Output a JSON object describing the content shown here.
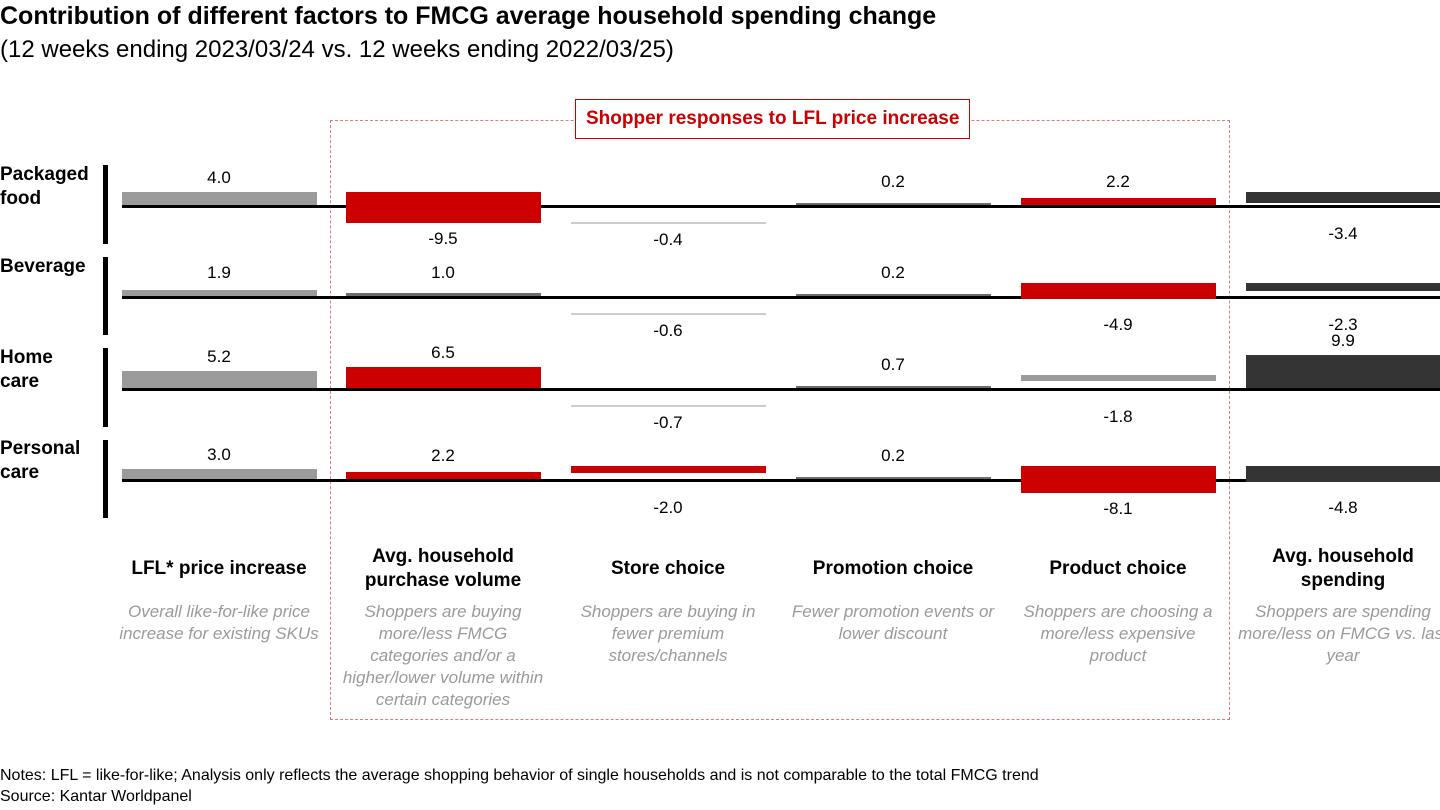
{
  "title": "Contribution of different factors to FMCG average household spending change",
  "subtitle": "(12 weeks ending 2023/03/24 vs. 12 weeks ending 2022/03/25)",
  "callout_label": "Shopper responses to LFL price increase",
  "notes": {
    "line1": "Notes: LFL = like-for-like; Analysis only reflects the average shopping behavior of single households and is not comparable to the total FMCG trend",
    "line2": "Source: Kantar Worldpanel"
  },
  "columns": [
    {
      "head": "LFL* price increase",
      "desc": "Overall like-for-like price increase for existing SKUs"
    },
    {
      "head": "Avg. household purchase volume",
      "desc": "Shoppers are buying more/less FMCG categories and/or a higher/lower volume within certain categories"
    },
    {
      "head": "Store choice",
      "desc": "Shoppers are buying in fewer premium stores/channels"
    },
    {
      "head": "Promotion choice",
      "desc": "Fewer promotion events or lower discount"
    },
    {
      "head": "Product choice",
      "desc": "Shoppers are choosing a more/less expensive product"
    },
    {
      "head": "Avg. household spending",
      "desc": "Shoppers are spending more/less on FMCG vs. last year"
    }
  ],
  "colors": {
    "red": "#cc0000",
    "gray": "#9b9b9b",
    "dark": "#333333",
    "light": "#cccccc",
    "mid": "#6d6d6d"
  },
  "chart_data": {
    "type": "bar",
    "categories": [
      "LFL* price increase",
      "Avg. household purchase volume",
      "Store choice",
      "Promotion choice",
      "Product choice",
      "Avg. household spending"
    ],
    "series": [
      {
        "name": "Packaged food",
        "values": [
          4.0,
          -9.5,
          -0.4,
          0.2,
          2.2,
          -3.4
        ],
        "labels": [
          "4.0",
          "-9.5",
          "-0.4",
          "0.2",
          "2.2",
          "-3.4"
        ]
      },
      {
        "name": "Beverage",
        "values": [
          1.9,
          1.0,
          -0.6,
          0.2,
          -4.9,
          -2.3
        ],
        "labels": [
          "1.9",
          "1.0",
          "-0.6",
          "0.2",
          "-4.9",
          "-2.3"
        ]
      },
      {
        "name": "Home care",
        "values": [
          5.2,
          6.5,
          -0.7,
          0.7,
          -1.8,
          9.9
        ],
        "labels": [
          "5.2",
          "6.5",
          "-0.7",
          "0.7",
          "-1.8",
          "9.9"
        ]
      },
      {
        "name": "Personal care",
        "values": [
          3.0,
          2.2,
          -2.0,
          0.2,
          -8.1,
          -4.8
        ],
        "labels": [
          "3.0",
          "2.2",
          "-2.0",
          "0.2",
          "-8.1",
          "-4.8"
        ]
      }
    ],
    "row_labels": [
      [
        "Packaged",
        "food"
      ],
      [
        "Beverage"
      ],
      [
        "Home",
        "care"
      ],
      [
        "Personal",
        "care"
      ]
    ],
    "bar_colors": [
      [
        "gray",
        "red",
        "light",
        "mid",
        "red",
        "dark"
      ],
      [
        "gray",
        "mid",
        "light",
        "mid",
        "red",
        "dark"
      ],
      [
        "gray",
        "red",
        "light",
        "mid",
        "gray",
        "dark"
      ],
      [
        "gray",
        "red",
        "red",
        "mid",
        "red",
        "dark"
      ]
    ],
    "value_label_positions": [
      [
        "above",
        "below",
        "below",
        "above",
        "above",
        "below"
      ],
      [
        "above",
        "above",
        "below",
        "above",
        "below",
        "below"
      ],
      [
        "above",
        "above",
        "below",
        "above",
        "below",
        "above"
      ],
      [
        "above",
        "above",
        "below",
        "above",
        "below",
        "below"
      ]
    ]
  }
}
